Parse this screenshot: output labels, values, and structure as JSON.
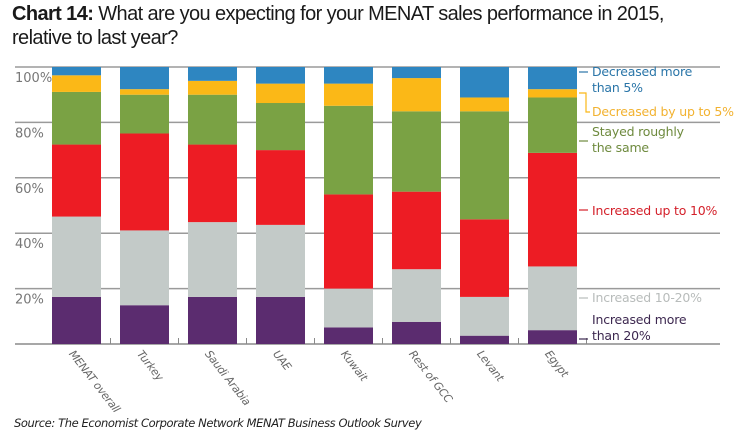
{
  "title": {
    "number": "Chart 14:",
    "text_line1": "What are you expecting for your MENAT sales performance in 2015,",
    "text_line2": "relative to last year?"
  },
  "source": "Source: The Economist Corporate Network MENAT Business Outlook Survey",
  "chart_data": {
    "type": "bar",
    "stacked": true,
    "title": "Chart 14: What are you expecting for your MENAT sales performance in 2015, relative to last year?",
    "xlabel": "",
    "ylabel": "",
    "ylim": [
      0,
      100
    ],
    "yticks": [
      20,
      40,
      60,
      80,
      100
    ],
    "ytick_labels": [
      "20%",
      "40%",
      "60%",
      "80%",
      "100%"
    ],
    "grid": true,
    "legend_position": "right",
    "categories": [
      "MENAT overall",
      "Turkey",
      "Saudi Arabia",
      "UAE",
      "Kuwait",
      "Rest of GCC",
      "Levant",
      "Egypt"
    ],
    "series": [
      {
        "name": "Increased more than 20%",
        "legend_lines": [
          "Increased more",
          "than 20%"
        ],
        "color": "#5b2c6f",
        "label_color": "#3d2850",
        "values": [
          17,
          14,
          17,
          17,
          6,
          8,
          3,
          5
        ]
      },
      {
        "name": "Increased 10-20%",
        "legend_lines": [
          "Increased 10-20%"
        ],
        "color": "#c3cac8",
        "label_color": "#b8bcbb",
        "values": [
          29,
          27,
          27,
          26,
          14,
          19,
          14,
          23
        ]
      },
      {
        "name": "Increased up to 10%",
        "legend_lines": [
          "Increased up to 10%"
        ],
        "color": "#ed1c24",
        "label_color": "#d4202a",
        "values": [
          26,
          35,
          28,
          27,
          34,
          28,
          28,
          41
        ]
      },
      {
        "name": "Stayed roughly the same",
        "legend_lines": [
          "Stayed roughly",
          "the same"
        ],
        "color": "#7aa244",
        "label_color": "#6e8a3e",
        "values": [
          19,
          14,
          18,
          17,
          32,
          29,
          39,
          20
        ]
      },
      {
        "name": "Decreased by up to 5%",
        "legend_lines": [
          "Decreased by up to 5%"
        ],
        "color": "#fbb817",
        "label_color": "#f2b230",
        "values": [
          6,
          2,
          5,
          7,
          8,
          12,
          5,
          3
        ]
      },
      {
        "name": "Decreased more than 5%",
        "legend_lines": [
          "Decreased more",
          "than 5%"
        ],
        "color": "#2e86c1",
        "label_color": "#2a75a8",
        "values": [
          3,
          8,
          5,
          6,
          6,
          4,
          11,
          8
        ]
      }
    ]
  }
}
